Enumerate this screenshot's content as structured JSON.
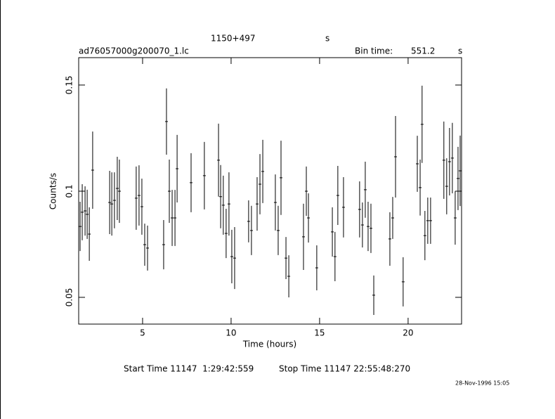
{
  "chart_data": {
    "type": "errorbar",
    "title": "1150+497",
    "title_suffix": "s",
    "file_name": "ad76057000g200070_1.lc",
    "bin_time_label": "Bin time:",
    "bin_time": 551.2,
    "bin_time_unit": "s",
    "xlabel": "Time (hours)",
    "ylabel": "Counts/s",
    "start_time": "Start Time 11147  1:29:42:559",
    "stop_time": "Stop Time 11147 22:55:48:270",
    "timestamp": "28-Nov-1996 15:05",
    "color": "#000000",
    "xlim": [
      1.39,
      23.02
    ],
    "xticks": [
      5,
      10,
      15,
      20
    ],
    "ylim": [
      0.0374,
      0.1629
    ],
    "yticks": [
      0.05,
      0.1,
      0.15
    ],
    "x": [
      1.47,
      1.59,
      1.75,
      1.87,
      1.99,
      2.18,
      3.14,
      3.26,
      3.41,
      3.57,
      3.69,
      4.64,
      4.8,
      4.96,
      5.12,
      5.28,
      6.19,
      6.35,
      6.51,
      6.67,
      6.83,
      6.95,
      7.74,
      8.49,
      9.29,
      9.41,
      9.56,
      9.72,
      9.88,
      10.04,
      10.2,
      10.99,
      11.15,
      11.47,
      11.63,
      11.79,
      12.5,
      12.66,
      12.82,
      13.1,
      13.26,
      14.09,
      14.25,
      14.37,
      14.84,
      15.72,
      15.87,
      16.03,
      16.35,
      17.26,
      17.42,
      17.58,
      17.74,
      17.9,
      18.06,
      18.97,
      19.13,
      19.29,
      19.72,
      20.52,
      20.68,
      20.79,
      20.95,
      21.11,
      21.27,
      22.02,
      22.18,
      22.34,
      22.5,
      22.66,
      22.82,
      22.94
    ],
    "values": [
      0.0834,
      0.0901,
      0.0907,
      0.0891,
      0.0798,
      0.1099,
      0.0947,
      0.094,
      0.0957,
      0.1013,
      0.1,
      0.0967,
      0.098,
      0.0927,
      0.0748,
      0.0732,
      0.0748,
      0.1328,
      0.1,
      0.0874,
      0.0874,
      0.1106,
      0.104,
      0.1073,
      0.1146,
      0.0974,
      0.0934,
      0.0801,
      0.094,
      0.0692,
      0.0685,
      0.0858,
      0.0815,
      0.094,
      0.1033,
      0.1093,
      0.0947,
      0.0815,
      0.1063,
      0.0685,
      0.0599,
      0.0785,
      0.1,
      0.0874,
      0.0639,
      0.0808,
      0.0692,
      0.098,
      0.0924,
      0.0914,
      0.0841,
      0.1007,
      0.0834,
      0.0825,
      0.051,
      0.0775,
      0.0874,
      0.1162,
      0.0573,
      0.1129,
      0.1017,
      0.1315,
      0.0791,
      0.0861,
      0.0861,
      0.1146,
      0.1023,
      0.1139,
      0.1156,
      0.0874,
      0.106,
      0.1096
    ],
    "errors": [
      0.0116,
      0.0132,
      0.0116,
      0.0116,
      0.0126,
      0.0182,
      0.0149,
      0.0149,
      0.0132,
      0.0149,
      0.0149,
      0.0149,
      0.0142,
      0.0132,
      0.0099,
      0.0106,
      0.0116,
      0.0156,
      0.0149,
      0.0132,
      0.0132,
      0.0159,
      0.0139,
      0.0159,
      0.0172,
      0.0149,
      0.0139,
      0.0116,
      0.0149,
      0.0126,
      0.0146,
      0.0099,
      0.0116,
      0.0126,
      0.0142,
      0.0149,
      0.0132,
      0.0116,
      0.0175,
      0.0099,
      0.0099,
      0.0156,
      0.0116,
      0.0116,
      0.0106,
      0.0116,
      0.0116,
      0.0139,
      0.0142,
      0.0132,
      0.0106,
      0.0132,
      0.0116,
      0.0116,
      0.0093,
      0.0126,
      0.0099,
      0.0192,
      0.0116,
      0.0132,
      0.0132,
      0.0182,
      0.0116,
      0.0109,
      0.0109,
      0.0182,
      0.0132,
      0.0159,
      0.0166,
      0.0126,
      0.0149,
      0.0166
    ]
  }
}
